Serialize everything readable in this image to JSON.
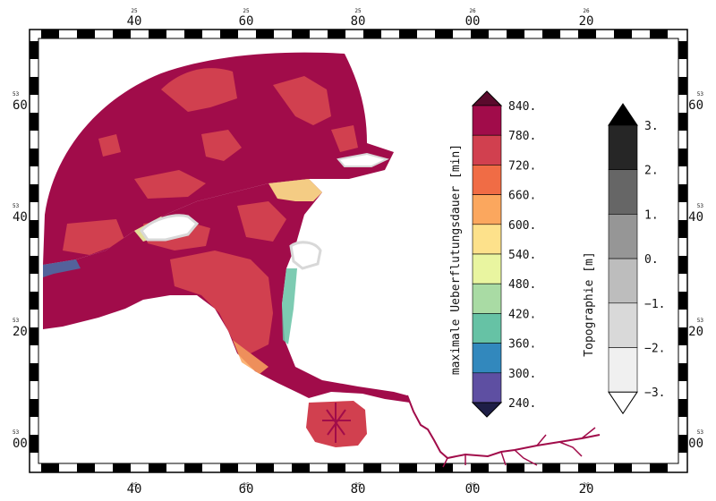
{
  "map": {
    "x_major_labels": [
      "40",
      "60",
      "80",
      "00",
      "20"
    ],
    "x_minor_labels": [
      "25",
      "25",
      "25",
      "26",
      "26"
    ],
    "y_major_labels": [
      "60",
      "40",
      "20",
      "00"
    ],
    "y_minor_labels": [
      "53",
      "53",
      "53",
      "53"
    ]
  },
  "legend_duration": {
    "title": "maximale Ueberflutungsdauer [min]",
    "labels": [
      "840.",
      "780.",
      "720.",
      "660.",
      "600.",
      "540.",
      "480.",
      "420.",
      "360.",
      "300.",
      "240."
    ],
    "colors": [
      "#a10c4a",
      "#d1404f",
      "#f06c45",
      "#fba75e",
      "#fde18b",
      "#e9f5a0",
      "#a9dba4",
      "#66c2a5",
      "#3288bd",
      "#5e4fa2"
    ],
    "top_arrow_color": "#5a0a2c",
    "bottom_arrow_color": "#1e1e46"
  },
  "legend_topo": {
    "title": "Topographie [m]",
    "labels": [
      "3.",
      "2.",
      "1.",
      "0.",
      "−1.",
      "−2.",
      "−3."
    ],
    "colors": [
      "#262626",
      "#666666",
      "#969696",
      "#bdbdbd",
      "#d9d9d9",
      "#f0f0f0"
    ],
    "top_arrow_color": "#000000",
    "bottom_arrow_color": "#ffffff"
  }
}
